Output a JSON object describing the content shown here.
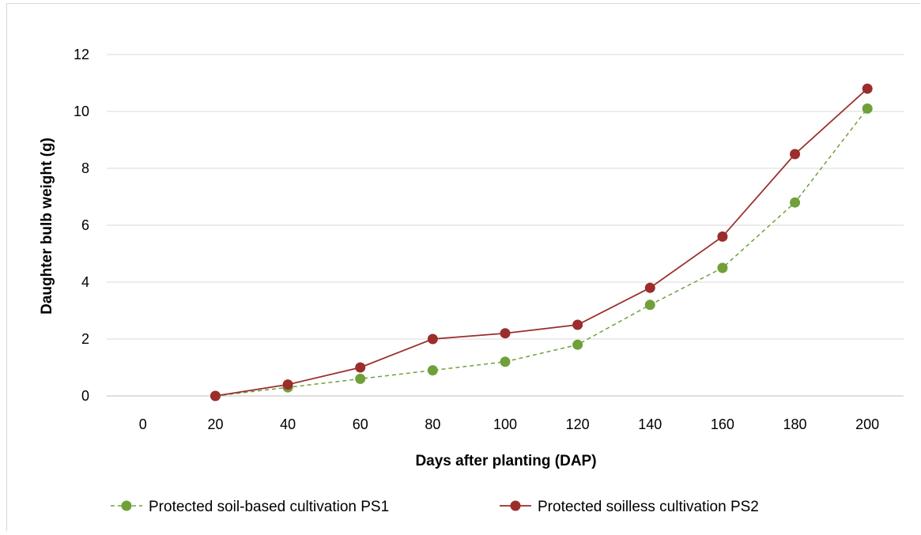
{
  "chart_data": {
    "type": "line",
    "xlabel": "Days after planting (DAP)",
    "ylabel": "Daughter bulb weight (g)",
    "categories": [
      "0",
      "20",
      "40",
      "60",
      "80",
      "100",
      "120",
      "140",
      "160",
      "180",
      "200"
    ],
    "ylim": [
      0,
      12
    ],
    "yticks": [
      "0",
      "2",
      "4",
      "6",
      "8",
      "10",
      "12"
    ],
    "grid": "horizontal",
    "legend_position": "bottom",
    "series": [
      {
        "name": "Protected soil-based cultivation PS1",
        "color": "#70a03a",
        "line_style": "dashed",
        "x": [
          20,
          40,
          60,
          80,
          100,
          120,
          140,
          160,
          180,
          200
        ],
        "values": [
          0,
          0.3,
          0.6,
          0.9,
          1.2,
          1.8,
          3.2,
          4.5,
          6.8,
          10.1
        ]
      },
      {
        "name": "Protected soilless cultivation PS2",
        "color": "#9b2d2d",
        "line_style": "solid",
        "x": [
          20,
          40,
          60,
          80,
          100,
          120,
          140,
          160,
          180,
          200
        ],
        "values": [
          0,
          0.4,
          1.0,
          2.0,
          2.2,
          2.5,
          3.8,
          5.6,
          8.5,
          10.8
        ]
      }
    ]
  }
}
